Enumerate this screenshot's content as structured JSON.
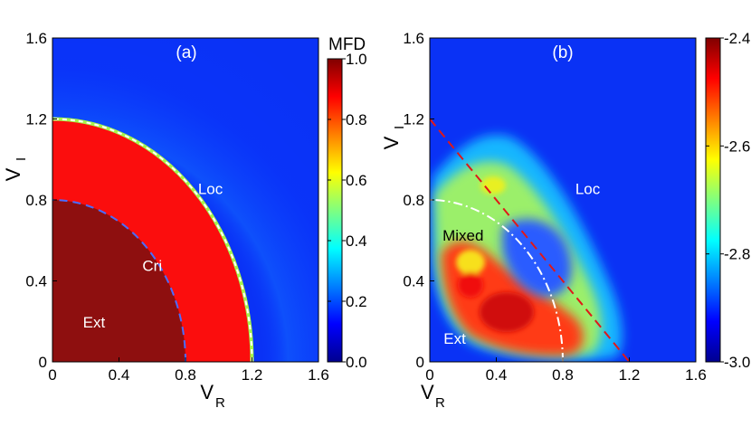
{
  "chart_data": [
    {
      "type": "heatmap",
      "panel_label": "(a)",
      "xlabel_main": "V",
      "xlabel_sub": "R",
      "ylabel_main": "V",
      "ylabel_sub": "I",
      "xlim": [
        0,
        1.6
      ],
      "ylim": [
        0,
        1.6
      ],
      "xticks": [
        "0",
        "0.4",
        "0.8",
        "1.2",
        "1.6"
      ],
      "yticks": [
        "0",
        "0.4",
        "0.8",
        "1.2",
        "1.6"
      ],
      "colorbar": {
        "title": "MFD",
        "range": [
          0.0,
          1.0
        ],
        "ticks": [
          "0.0",
          "0.2",
          "0.4",
          "0.6",
          "0.8",
          "1.0"
        ]
      },
      "regions": [
        {
          "name": "Ext",
          "value": 0.95,
          "outer_radius": 0.8
        },
        {
          "name": "Cri",
          "value": 0.82,
          "outer_radius": 1.2
        },
        {
          "name": "Loc",
          "value": 0.05
        }
      ],
      "boundaries": [
        {
          "radius": 0.8,
          "style": "dashed",
          "color": "#4a6cff"
        },
        {
          "radius": 1.2,
          "style": "dashed",
          "color": "#ffffff"
        }
      ],
      "region_labels": [
        {
          "text": "Ext",
          "x": 0.25,
          "y": 0.17
        },
        {
          "text": "Cri",
          "x": 0.6,
          "y": 0.45
        },
        {
          "text": "Loc",
          "x": 0.95,
          "y": 0.83
        }
      ]
    },
    {
      "type": "heatmap",
      "panel_label": "(b)",
      "xlabel_main": "V",
      "xlabel_sub": "R",
      "ylabel_main": "V",
      "ylabel_sub": "I",
      "xlim": [
        0,
        1.6
      ],
      "ylim": [
        0,
        1.6
      ],
      "xticks": [
        "0",
        "0.4",
        "0.8",
        "1.2",
        "1.6"
      ],
      "yticks": [
        "0",
        "0.4",
        "0.8",
        "1.2",
        "1.6"
      ],
      "colorbar": {
        "title": "",
        "range": [
          -3.0,
          -2.4
        ],
        "ticks": [
          "-3.0",
          "-2.8",
          "-2.6",
          "-2.4"
        ]
      },
      "background_value": -2.97,
      "boundaries": [
        {
          "type": "line",
          "from": [
            0,
            1.2
          ],
          "to": [
            1.2,
            0
          ],
          "style": "dashed",
          "color": "#e01818"
        },
        {
          "type": "arc",
          "radius": 0.8,
          "style": "dash-dot",
          "color": "#ffffff"
        }
      ],
      "region_labels": [
        {
          "text": "Mixed",
          "x": 0.2,
          "y": 0.6
        },
        {
          "text": "Loc",
          "x": 0.95,
          "y": 0.83
        },
        {
          "text": "Ext",
          "x": 0.15,
          "y": 0.09
        }
      ]
    }
  ]
}
